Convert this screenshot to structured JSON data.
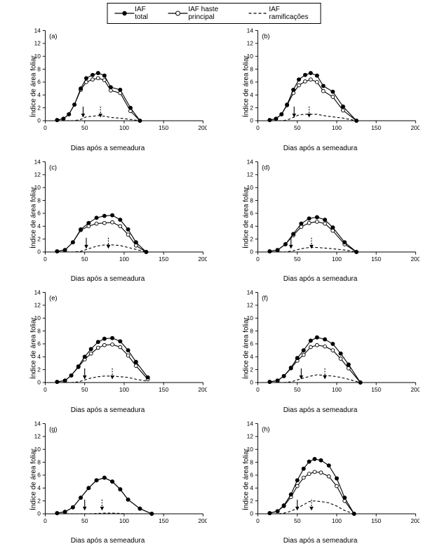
{
  "legend": {
    "items": [
      {
        "label": "IAF total",
        "style": "solid-filled"
      },
      {
        "label": "IAF haste principal",
        "style": "solid-open"
      },
      {
        "label": "IAF ramificações",
        "style": "dashed"
      }
    ],
    "border_color": "#000000"
  },
  "global": {
    "xlabel": "Dias após a semeadura",
    "ylabel": "Índice de área foliar",
    "xlim": [
      0,
      200
    ],
    "ylim": [
      0,
      14
    ],
    "xtick_step": 50,
    "ytick_step": 2,
    "line_color": "#000000",
    "background_color": "#ffffff",
    "marker_size": 3.2,
    "marker_size_small": 2.6,
    "line_width": 1.2,
    "dash_pattern": "4,3",
    "label_fontsize": 10,
    "tick_fontsize": 9,
    "panel_label_fontsize": 10
  },
  "panels": [
    {
      "id": "a",
      "label": "(a)",
      "series": {
        "total": {
          "x": [
            15,
            23,
            30,
            37,
            45,
            52,
            60,
            67,
            75,
            83,
            95,
            108,
            120
          ],
          "y": [
            0.1,
            0.3,
            1.0,
            2.5,
            5.0,
            6.6,
            7.1,
            7.4,
            7.0,
            5.2,
            4.8,
            2.0,
            0
          ]
        },
        "principal": {
          "x": [
            15,
            23,
            30,
            37,
            45,
            52,
            60,
            67,
            75,
            83,
            95,
            108,
            120
          ],
          "y": [
            0.1,
            0.3,
            1.0,
            2.5,
            4.8,
            6.0,
            6.4,
            6.6,
            6.3,
            4.7,
            4.3,
            1.5,
            0
          ]
        },
        "ramific": {
          "x": [
            15,
            23,
            30,
            37,
            45,
            52,
            60,
            67,
            75,
            83,
            95,
            108,
            120
          ],
          "y": [
            0,
            0,
            0,
            0,
            0.2,
            0.6,
            0.7,
            0.8,
            0.7,
            0.5,
            0.4,
            0.2,
            0
          ]
        }
      },
      "arrows": [
        {
          "x": 48,
          "style": "solid"
        },
        {
          "x": 70,
          "style": "dashed"
        }
      ]
    },
    {
      "id": "b",
      "label": "(b)",
      "series": {
        "total": {
          "x": [
            15,
            23,
            30,
            37,
            45,
            52,
            60,
            67,
            75,
            83,
            95,
            108,
            125
          ],
          "y": [
            0.1,
            0.3,
            1.0,
            2.5,
            4.8,
            6.4,
            7.1,
            7.4,
            7.0,
            5.4,
            4.5,
            2.2,
            0
          ]
        },
        "principal": {
          "x": [
            15,
            23,
            30,
            37,
            45,
            52,
            60,
            67,
            75,
            83,
            95,
            108,
            125
          ],
          "y": [
            0.1,
            0.3,
            1.0,
            2.4,
            4.3,
            5.5,
            6.1,
            6.4,
            6.0,
            4.6,
            3.7,
            1.6,
            0
          ]
        },
        "ramific": {
          "x": [
            15,
            23,
            30,
            37,
            45,
            52,
            60,
            67,
            75,
            83,
            95,
            108,
            125
          ],
          "y": [
            0,
            0,
            0,
            0.1,
            0.5,
            0.9,
            1.0,
            1.0,
            1.0,
            0.8,
            0.6,
            0.4,
            0
          ]
        }
      },
      "arrows": [
        {
          "x": 46,
          "style": "solid"
        },
        {
          "x": 65,
          "style": "dashed"
        }
      ]
    },
    {
      "id": "c",
      "label": "(c)",
      "series": {
        "total": {
          "x": [
            15,
            25,
            35,
            45,
            55,
            65,
            75,
            85,
            95,
            105,
            115,
            128
          ],
          "y": [
            0.1,
            0.3,
            1.5,
            3.5,
            4.5,
            5.3,
            5.6,
            5.7,
            5.0,
            3.5,
            1.5,
            0
          ]
        },
        "principal": {
          "x": [
            15,
            25,
            35,
            45,
            55,
            65,
            75,
            85,
            95,
            105,
            115,
            128
          ],
          "y": [
            0.1,
            0.3,
            1.5,
            3.4,
            4.0,
            4.4,
            4.5,
            4.6,
            4.0,
            2.7,
            1.0,
            0
          ]
        },
        "ramific": {
          "x": [
            15,
            25,
            35,
            45,
            55,
            65,
            75,
            85,
            95,
            105,
            115,
            128
          ],
          "y": [
            0,
            0,
            0,
            0.1,
            0.5,
            0.9,
            1.1,
            1.1,
            1.0,
            0.7,
            0.4,
            0
          ]
        }
      },
      "arrows": [
        {
          "x": 52,
          "style": "solid"
        },
        {
          "x": 80,
          "style": "dashed"
        }
      ]
    },
    {
      "id": "d",
      "label": "(d)",
      "series": {
        "total": {
          "x": [
            15,
            25,
            35,
            45,
            55,
            65,
            75,
            85,
            95,
            110,
            125
          ],
          "y": [
            0.1,
            0.3,
            1.2,
            2.8,
            4.4,
            5.2,
            5.4,
            5.0,
            3.8,
            1.5,
            0
          ]
        },
        "principal": {
          "x": [
            15,
            25,
            35,
            45,
            55,
            65,
            75,
            85,
            95,
            110,
            125
          ],
          "y": [
            0.1,
            0.3,
            1.2,
            2.6,
            3.9,
            4.5,
            4.7,
            4.4,
            3.3,
            1.2,
            0
          ]
        },
        "ramific": {
          "x": [
            15,
            25,
            35,
            45,
            55,
            65,
            75,
            85,
            95,
            110,
            125
          ],
          "y": [
            0,
            0,
            0,
            0.2,
            0.5,
            0.7,
            0.7,
            0.6,
            0.5,
            0.3,
            0
          ]
        }
      },
      "arrows": [
        {
          "x": 42,
          "style": "solid"
        },
        {
          "x": 68,
          "style": "dashed"
        }
      ]
    },
    {
      "id": "e",
      "label": "(e)",
      "series": {
        "total": {
          "x": [
            15,
            25,
            33,
            42,
            50,
            58,
            67,
            75,
            85,
            95,
            105,
            115,
            130
          ],
          "y": [
            0.1,
            0.3,
            1.1,
            2.5,
            4.0,
            5.2,
            6.3,
            6.8,
            6.9,
            6.4,
            5.0,
            3.2,
            0.8
          ]
        },
        "principal": {
          "x": [
            15,
            25,
            33,
            42,
            50,
            58,
            67,
            75,
            85,
            95,
            105,
            115,
            130
          ],
          "y": [
            0.1,
            0.3,
            1.1,
            2.4,
            3.6,
            4.5,
            5.4,
            5.8,
            5.9,
            5.5,
            4.2,
            2.6,
            0.5
          ]
        },
        "ramific": {
          "x": [
            15,
            25,
            33,
            42,
            50,
            58,
            67,
            75,
            85,
            95,
            105,
            115,
            130
          ],
          "y": [
            0,
            0,
            0,
            0.1,
            0.4,
            0.7,
            0.9,
            1.0,
            1.0,
            0.9,
            0.8,
            0.5,
            0.2
          ]
        }
      },
      "arrows": [
        {
          "x": 50,
          "style": "solid"
        },
        {
          "x": 85,
          "style": "dashed"
        }
      ]
    },
    {
      "id": "f",
      "label": "(f)",
      "series": {
        "total": {
          "x": [
            15,
            25,
            33,
            42,
            50,
            58,
            67,
            75,
            85,
            95,
            105,
            115,
            130
          ],
          "y": [
            0.1,
            0.3,
            1.0,
            2.3,
            3.8,
            5.0,
            6.5,
            7.0,
            6.7,
            6.0,
            4.5,
            2.8,
            0
          ]
        },
        "principal": {
          "x": [
            15,
            25,
            33,
            42,
            50,
            58,
            67,
            75,
            85,
            95,
            105,
            115,
            130
          ],
          "y": [
            0.1,
            0.3,
            1.0,
            2.2,
            3.4,
            4.3,
            5.5,
            5.8,
            5.6,
            5.0,
            3.7,
            2.2,
            0
          ]
        },
        "ramific": {
          "x": [
            15,
            25,
            33,
            42,
            50,
            58,
            67,
            75,
            85,
            95,
            105,
            115,
            130
          ],
          "y": [
            0,
            0,
            0,
            0.1,
            0.4,
            0.7,
            1.0,
            1.2,
            1.1,
            1.0,
            0.8,
            0.5,
            0
          ]
        }
      },
      "arrows": [
        {
          "x": 55,
          "style": "solid"
        },
        {
          "x": 85,
          "style": "dashed"
        }
      ]
    },
    {
      "id": "g",
      "label": "(g)",
      "series": {
        "total": {
          "x": [
            15,
            25,
            35,
            45,
            55,
            65,
            75,
            85,
            95,
            105,
            120,
            135
          ],
          "y": [
            0.1,
            0.3,
            1.0,
            2.5,
            4.0,
            5.2,
            5.6,
            5.0,
            3.8,
            2.2,
            0.8,
            0
          ]
        },
        "principal": {
          "x": [
            15,
            25,
            35,
            45,
            55,
            65,
            75,
            85,
            95,
            105,
            120,
            135
          ],
          "y": [
            0.1,
            0.3,
            1.0,
            2.5,
            4.0,
            5.2,
            5.6,
            5.0,
            3.8,
            2.2,
            0.8,
            0
          ]
        },
        "ramific": {
          "x": [
            15,
            25,
            35,
            45,
            55,
            65,
            75,
            85,
            95,
            105,
            120,
            135
          ],
          "y": [
            0,
            0,
            0,
            0,
            0,
            0.05,
            0.1,
            0.1,
            0.05,
            0,
            0,
            0
          ]
        }
      },
      "arrows": [
        {
          "x": 50,
          "style": "solid"
        },
        {
          "x": 72,
          "style": "dashed"
        }
      ]
    },
    {
      "id": "h",
      "label": "(h)",
      "series": {
        "total": {
          "x": [
            15,
            25,
            33,
            42,
            50,
            58,
            65,
            72,
            80,
            90,
            100,
            110,
            122
          ],
          "y": [
            0.1,
            0.4,
            1.3,
            3.0,
            5.2,
            7.0,
            8.1,
            8.5,
            8.3,
            7.5,
            5.5,
            2.5,
            0
          ]
        },
        "principal": {
          "x": [
            15,
            25,
            33,
            42,
            50,
            58,
            65,
            72,
            80,
            90,
            100,
            110,
            122
          ],
          "y": [
            0.1,
            0.4,
            1.2,
            2.6,
            4.3,
            5.6,
            6.2,
            6.5,
            6.4,
            5.8,
            4.3,
            2.0,
            0
          ]
        },
        "ramific": {
          "x": [
            15,
            25,
            33,
            42,
            50,
            58,
            65,
            72,
            80,
            90,
            100,
            110,
            122
          ],
          "y": [
            0,
            0,
            0.1,
            0.4,
            0.9,
            1.4,
            1.9,
            2.0,
            1.9,
            1.7,
            1.2,
            0.5,
            0
          ]
        }
      },
      "arrows": [
        {
          "x": 50,
          "style": "solid"
        },
        {
          "x": 68,
          "style": "dashed"
        }
      ]
    }
  ]
}
